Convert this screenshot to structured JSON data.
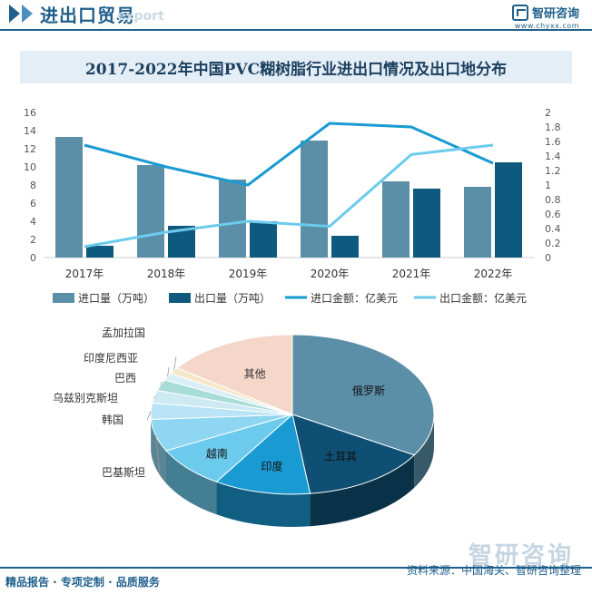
{
  "header": {
    "title": "进出口贸易",
    "subtitle_watermark": "export",
    "brand_name": "智研咨询",
    "brand_url": "www.chyxx.com"
  },
  "chart_title": "2017-2022年中国PVC糊树脂行业进出口情况及出口地分布",
  "colors": {
    "import_bar": "#5b8fa8",
    "export_bar": "#0e5a7e",
    "import_line": "#1a9ad2",
    "export_line": "#6ccbec"
  },
  "chart_data": [
    {
      "type": "bar",
      "categories": [
        "2017年",
        "2018年",
        "2019年",
        "2020年",
        "2021年",
        "2022年"
      ],
      "series": [
        {
          "name": "进口量（万吨）",
          "values": [
            13.3,
            10.2,
            8.6,
            12.9,
            8.4,
            7.8
          ],
          "axis": "left",
          "kind": "bar"
        },
        {
          "name": "出口量（万吨）",
          "values": [
            1.3,
            3.5,
            4.0,
            2.4,
            7.6,
            10.5
          ],
          "axis": "left",
          "kind": "bar"
        },
        {
          "name": "进口金额：亿美元",
          "values": [
            1.55,
            1.25,
            1.0,
            1.85,
            1.8,
            1.3
          ],
          "axis": "right",
          "kind": "line"
        },
        {
          "name": "出口金额：亿美元",
          "values": [
            0.15,
            0.35,
            0.5,
            0.43,
            1.42,
            1.55
          ],
          "axis": "right",
          "kind": "line"
        }
      ],
      "ylim_left": [
        0,
        16
      ],
      "yticks_left": [
        "0",
        "2",
        "4",
        "6",
        "8",
        "10",
        "12",
        "14",
        "16"
      ],
      "ylim_right": [
        0,
        2
      ],
      "yticks_right": [
        "0",
        "0.2",
        "0.4",
        "0.6",
        "0.8",
        "1",
        "1.2",
        "1.4",
        "1.6",
        "1.8",
        "2"
      ],
      "legend_position": "bottom"
    },
    {
      "type": "pie",
      "style": "3d",
      "slices": [
        {
          "label": "俄罗斯",
          "value": 33.5,
          "color": "#5b8fa8"
        },
        {
          "label": "土耳其",
          "value": 14.5,
          "color": "#0e4f73"
        },
        {
          "label": "印度",
          "value": 11.0,
          "color": "#1a9ad2"
        },
        {
          "label": "越南",
          "value": 8.5,
          "color": "#6ccbec"
        },
        {
          "label": "巴基斯坦",
          "value": 6.5,
          "color": "#8fd6f2"
        },
        {
          "label": "韩国",
          "value": 3.3,
          "color": "#b8e4f5"
        },
        {
          "label": "乌兹别克斯坦",
          "value": 2.6,
          "color": "#cde9f2"
        },
        {
          "label": "巴西",
          "value": 2.2,
          "color": "#a8dcd6"
        },
        {
          "label": "印度尼西亚",
          "value": 1.5,
          "color": "#d9eef5"
        },
        {
          "label": "孟加拉国",
          "value": 1.3,
          "color": "#f5e7c8"
        },
        {
          "label": "其他",
          "value": 15.1,
          "color": "#f4d7c9"
        }
      ]
    }
  ],
  "footer": {
    "left": "精品报告 · 专项定制 · 品质服务",
    "right": "资料来源：中国海关、智研咨询整理",
    "watermark": "智研咨询"
  }
}
